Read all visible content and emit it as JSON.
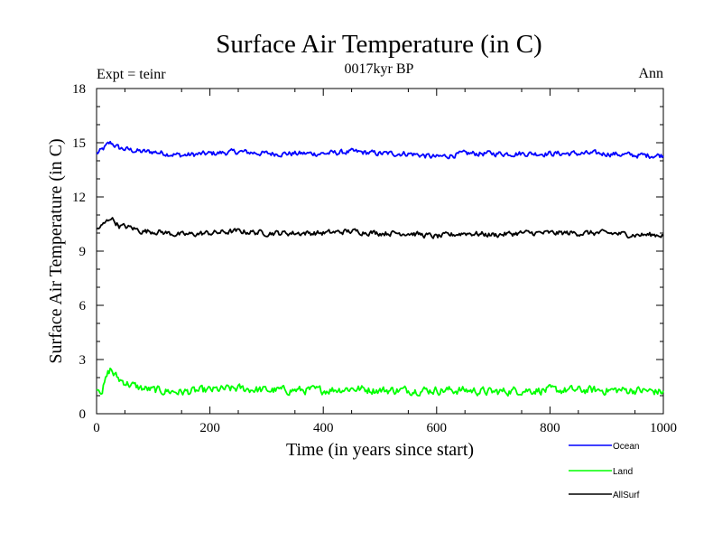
{
  "chart_data": {
    "type": "line",
    "title": "Surface Air Temperature (in C)",
    "subtitle": "0017kyr BP",
    "left_annotation": "Expt = teinr",
    "right_annotation": "Ann",
    "xlabel": "Time (in years since start)",
    "ylabel": "Surface Air Temperature (in C)",
    "xlim": [
      0,
      1000
    ],
    "ylim": [
      0,
      18
    ],
    "xticks": [
      0,
      200,
      400,
      600,
      800,
      1000
    ],
    "yticks": [
      0,
      3,
      6,
      9,
      12,
      15,
      18
    ],
    "legend_position": "bottom-right",
    "x": [
      0,
      10,
      20,
      25,
      30,
      40,
      60,
      80,
      100,
      150,
      200,
      250,
      300,
      350,
      400,
      450,
      500,
      550,
      600,
      650,
      700,
      750,
      800,
      850,
      900,
      950,
      1000
    ],
    "series": [
      {
        "name": "Ocean",
        "color": "#0000ff",
        "values": [
          14.4,
          14.6,
          14.9,
          15.0,
          14.9,
          14.7,
          14.6,
          14.5,
          14.5,
          14.3,
          14.4,
          14.5,
          14.4,
          14.4,
          14.4,
          14.5,
          14.4,
          14.4,
          14.2,
          14.4,
          14.4,
          14.4,
          14.4,
          14.4,
          14.4,
          14.3,
          14.3
        ]
      },
      {
        "name": "Land",
        "color": "#00ff00",
        "values": [
          1.5,
          1.3,
          2.2,
          2.5,
          2.2,
          1.9,
          1.6,
          1.4,
          1.3,
          1.2,
          1.3,
          1.4,
          1.3,
          1.3,
          1.3,
          1.4,
          1.3,
          1.3,
          1.3,
          1.3,
          1.2,
          1.3,
          1.3,
          1.3,
          1.3,
          1.3,
          1.2
        ]
      },
      {
        "name": "AllSurf",
        "color": "#000000",
        "values": [
          10.2,
          10.4,
          10.7,
          10.9,
          10.7,
          10.4,
          10.3,
          10.1,
          10.1,
          9.9,
          10.0,
          10.1,
          10.0,
          10.0,
          10.0,
          10.1,
          10.0,
          10.0,
          9.8,
          10.0,
          9.9,
          10.0,
          10.0,
          10.0,
          10.0,
          9.9,
          9.9
        ]
      }
    ]
  }
}
